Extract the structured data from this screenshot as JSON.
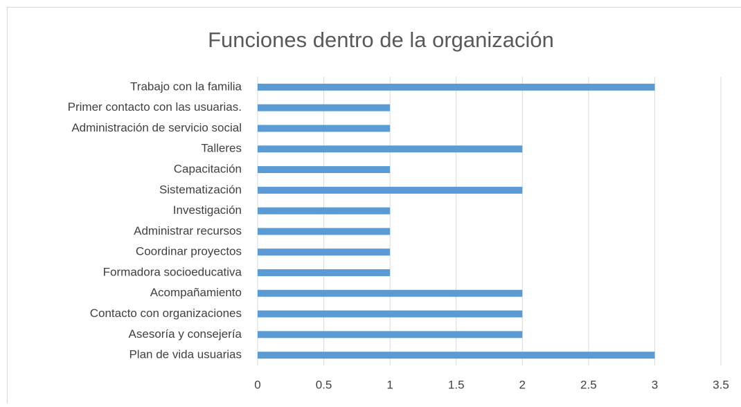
{
  "chart_data": {
    "type": "bar",
    "orientation": "horizontal",
    "title": "Funciones dentro de la organización",
    "categories": [
      "Trabajo con la familia",
      "Primer contacto con las usuarias.",
      "Administración de servicio social",
      "Talleres",
      "Capacitación",
      "Sistematización",
      "Investigación",
      "Administrar recursos",
      "Coordinar proyectos",
      "Formadora socioeducativa",
      "Acompañamiento",
      "Contacto con organizaciones",
      "Asesoría y consejería",
      "Plan de vida usuarias"
    ],
    "values": [
      3,
      1,
      1,
      2,
      1,
      2,
      1,
      1,
      1,
      1,
      2,
      2,
      2,
      3
    ],
    "color": "#5b9bd5",
    "xlim": [
      0,
      3.5
    ],
    "xticks": [
      0,
      0.5,
      1,
      1.5,
      2,
      2.5,
      3,
      3.5
    ],
    "grid": true
  }
}
